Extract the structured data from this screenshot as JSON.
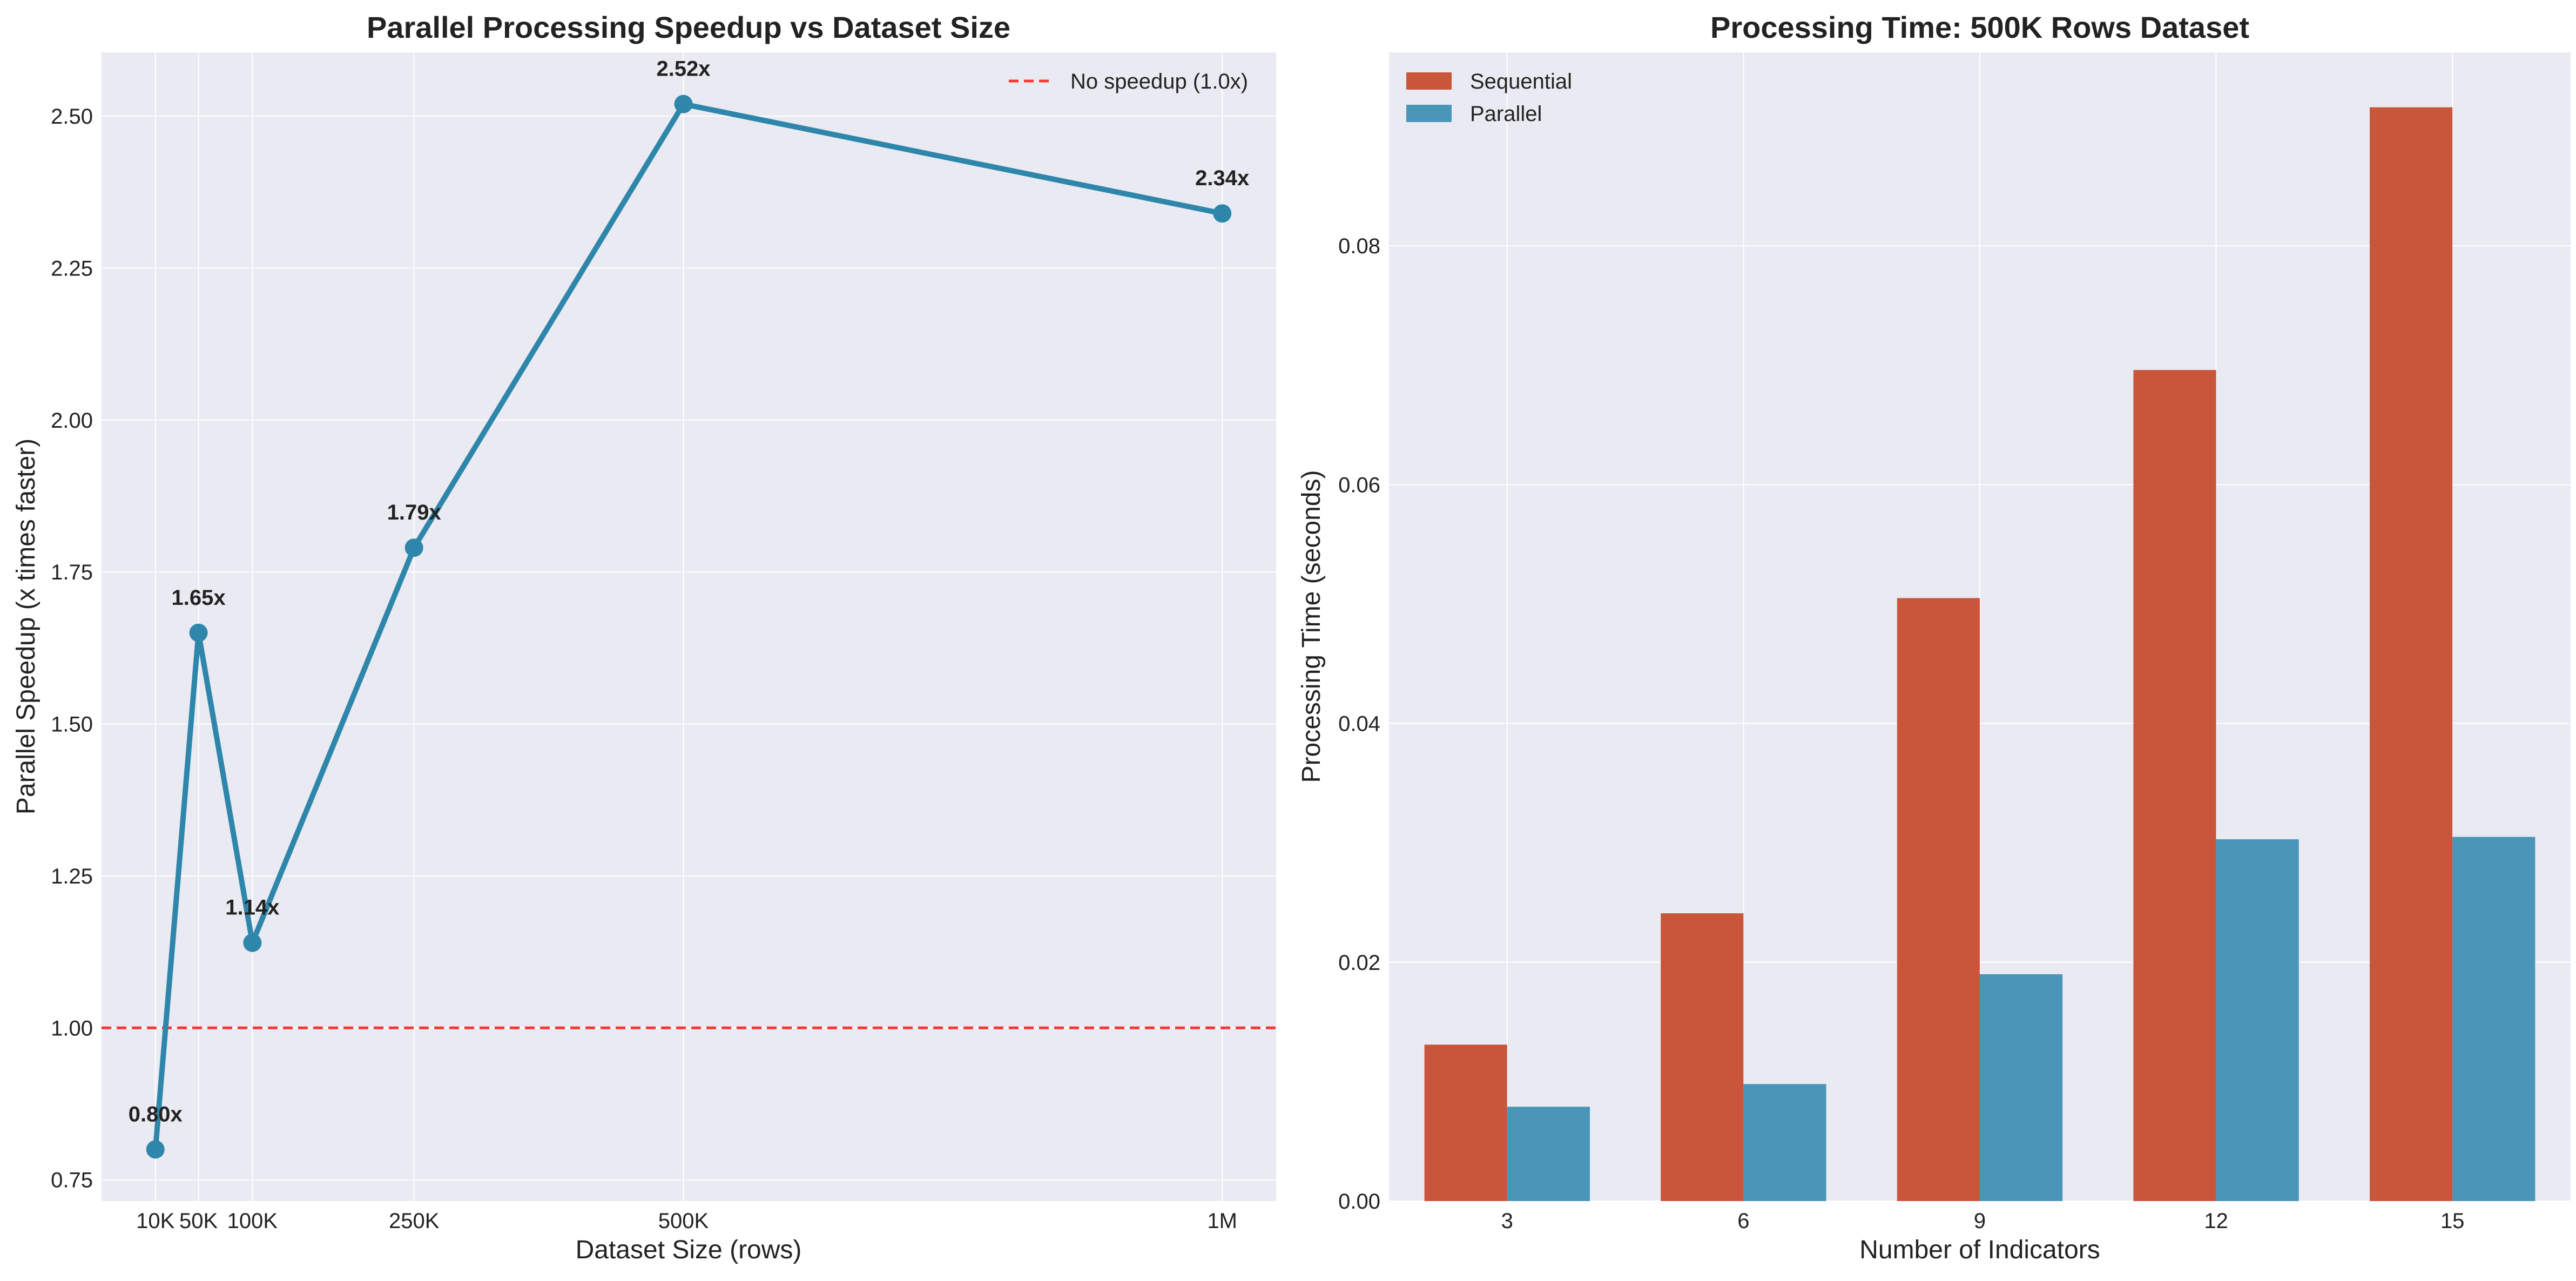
{
  "chart_data": [
    {
      "type": "line",
      "title": "Parallel Processing Speedup vs Dataset Size",
      "xlabel": "Dataset Size (rows)",
      "ylabel": "Parallel Speedup (x times faster)",
      "x": [
        10000,
        50000,
        100000,
        250000,
        500000,
        1000000
      ],
      "x_tick_values": [
        10000,
        50000,
        100000,
        250000,
        500000,
        1000000
      ],
      "x_tick_labels": [
        "10K",
        "50K",
        "100K",
        "250K",
        "500K",
        "1M"
      ],
      "xlim": [
        -40000,
        1050000
      ],
      "series": [
        {
          "values": [
            0.8,
            1.65,
            1.14,
            1.79,
            2.52,
            2.34
          ],
          "color": "#2e86ab"
        }
      ],
      "data_labels": [
        "0.80x",
        "1.65x",
        "1.14x",
        "1.79x",
        "2.52x",
        "2.34x"
      ],
      "ylim": [
        0.715,
        2.605
      ],
      "y_ticks": [
        0.75,
        1.0,
        1.25,
        1.5,
        1.75,
        2.0,
        2.25,
        2.5
      ],
      "y_tick_labels": [
        "0.75",
        "1.00",
        "1.25",
        "1.50",
        "1.75",
        "2.00",
        "2.25",
        "2.50"
      ],
      "reference_line": {
        "y": 1.0,
        "label": "No speedup (1.0x)",
        "color": "#ff3333",
        "style": "dashed"
      },
      "legend_position": "top-right",
      "grid": true
    },
    {
      "type": "bar",
      "title": "Processing Time: 500K Rows Dataset",
      "xlabel": "Number of Indicators",
      "ylabel": "Processing Time (seconds)",
      "categories": [
        "3",
        "6",
        "9",
        "12",
        "15"
      ],
      "series": [
        {
          "name": "Sequential",
          "values": [
            0.0131,
            0.0241,
            0.0505,
            0.0696,
            0.0916
          ],
          "color": "#c9553b"
        },
        {
          "name": "Parallel",
          "values": [
            0.0079,
            0.0098,
            0.019,
            0.0303,
            0.0305
          ],
          "color": "#4a96b8"
        }
      ],
      "ylim": [
        0,
        0.0962
      ],
      "y_ticks": [
        0,
        0.02,
        0.04,
        0.06,
        0.08
      ],
      "y_tick_labels": [
        "0.00",
        "0.02",
        "0.04",
        "0.06",
        "0.08"
      ],
      "legend_position": "top-left",
      "grid": true
    }
  ]
}
